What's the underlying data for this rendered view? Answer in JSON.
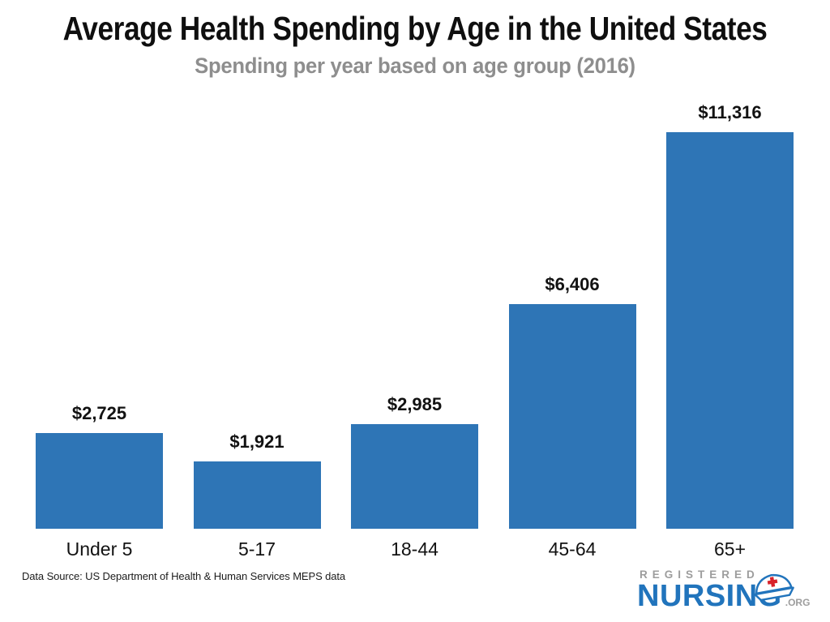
{
  "chart": {
    "title": "Average Health Spending by Age in the United States",
    "subtitle": "Spending per year based on age group (2016)",
    "source": "Data Source: US Department of Health & Human Services MEPS data"
  },
  "chart_data": {
    "type": "bar",
    "title": "Average Health Spending by Age in the United States",
    "subtitle": "Spending per year based on age group (2016)",
    "categories": [
      "Under 5",
      "5-17",
      "18-44",
      "45-64",
      "65+"
    ],
    "values": [
      2725,
      1921,
      2985,
      6406,
      11316
    ],
    "labels": [
      "$2,725",
      "$1,921",
      "$2,985",
      "$6,406",
      "$11,316"
    ],
    "xlabel": "",
    "ylabel": "",
    "ylim": [
      0,
      11316
    ],
    "bar_color": "#2E75B6",
    "grid": false,
    "axes_visible": false,
    "legend": "none",
    "data_labels_position": "above-bars"
  },
  "branding": {
    "registered": "REGISTERED",
    "nursing": "NURSING",
    "tld": ".ORG",
    "nursing_color": "#2174BC",
    "gray_color": "#9d9d9d",
    "cap_icon": "nurse-cap-icon",
    "cap_cross_color": "#D8232A"
  },
  "colors": {
    "bar": "#2E75B6",
    "title": "#0f0f0f",
    "subtitle": "#8e8e8e",
    "labels": "#121212"
  }
}
